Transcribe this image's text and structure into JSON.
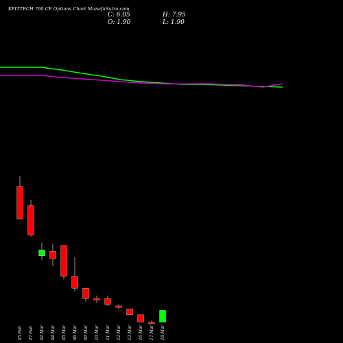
{
  "header": {
    "title": "KPITTECH 760  CE Options  Chart MunafaSutra.com",
    "close_label": "C: 6.05",
    "high_label": "H: 7.95",
    "open_label": "O: 1.90",
    "low_label": "L: 1.90"
  },
  "chart_data": {
    "type": "candlestick",
    "title": "KPITTECH 760  CE Options  Chart MunafaSutra.com",
    "categories": [
      "25 Feb",
      "27 Feb",
      "02 Mar",
      "04 Mar",
      "05 Mar",
      "06 Mar",
      "09 Mar",
      "10 Mar",
      "11 Mar",
      "12 Mar",
      "13 Mar",
      "16 Mar",
      "17 Mar",
      "18 Mar"
    ],
    "candles": [
      {
        "open": 44.0,
        "high": 47.5,
        "low": 33.0,
        "close": 33.0,
        "color": "red"
      },
      {
        "open": 37.5,
        "high": 39.5,
        "low": 27.0,
        "close": 27.5,
        "color": "red"
      },
      {
        "open": 20.5,
        "high": 25.0,
        "low": 19.0,
        "close": 22.5,
        "color": "green"
      },
      {
        "open": 22.0,
        "high": 24.5,
        "low": 17.0,
        "close": 19.5,
        "color": "red"
      },
      {
        "open": 24.0,
        "high": 24.0,
        "low": 12.5,
        "close": 13.5,
        "color": "red"
      },
      {
        "open": 13.5,
        "high": 20.0,
        "low": 8.5,
        "close": 9.5,
        "color": "red"
      },
      {
        "open": 9.5,
        "high": 9.5,
        "low": 5.0,
        "close": 6.0,
        "color": "red"
      },
      {
        "open": 6.0,
        "high": 7.0,
        "low": 4.5,
        "close": 5.5,
        "color": "red"
      },
      {
        "open": 6.0,
        "high": 7.0,
        "low": 3.5,
        "close": 4.0,
        "color": "red"
      },
      {
        "open": 3.5,
        "high": 4.0,
        "low": 2.5,
        "close": 3.0,
        "color": "red"
      },
      {
        "open": 2.5,
        "high": 2.5,
        "low": 0.5,
        "close": 0.5,
        "color": "red"
      },
      {
        "open": 0.5,
        "high": 0.5,
        "low": -2.0,
        "close": -2.0,
        "color": "red"
      },
      {
        "open": -2.0,
        "high": -1.5,
        "low": -2.5,
        "close": -2.3,
        "color": "red"
      },
      {
        "open": -2.0,
        "high": 2.0,
        "low": -2.0,
        "close": 2.0,
        "color": "green"
      }
    ],
    "series": [
      {
        "color": "#00ff00",
        "values": [
          154,
          154,
          150,
          145,
          141,
          136,
          133,
          131,
          129,
          129,
          128,
          127,
          126,
          125
        ]
      },
      {
        "color": "#cc00cc",
        "values": [
          142,
          142,
          139,
          137,
          135,
          133,
          131,
          130,
          129.5,
          130,
          129,
          128,
          125,
          130
        ]
      }
    ]
  }
}
